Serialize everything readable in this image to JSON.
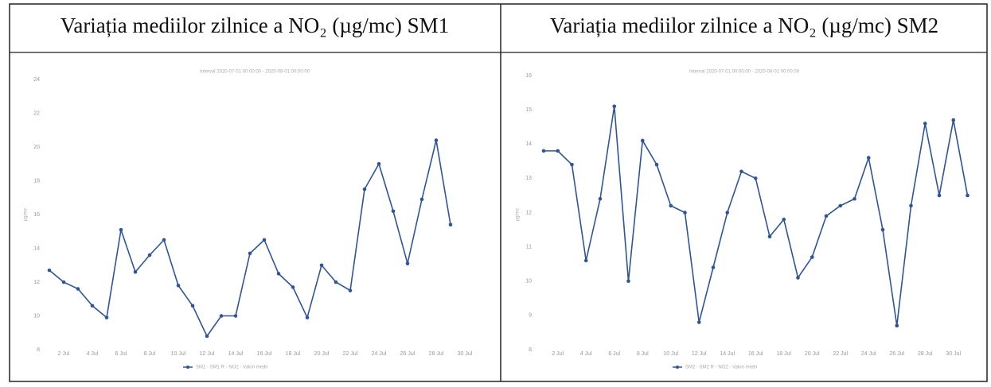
{
  "chart_data": [
    {
      "type": "line",
      "title": "Variația mediilor zilnice a NO₂ (µg/mc) SM1",
      "subtitle": "Interval 2020-07-01 00:00:00 - 2020-08-01 00:00:00",
      "ylabel": "µg/mc",
      "categories": [
        null,
        "2 Jul",
        null,
        "4 Jul",
        null,
        "6 Jul",
        null,
        "8 Jul",
        null,
        "10 Jul",
        null,
        "12 Jul",
        null,
        "14 Jul",
        null,
        "16 Jul",
        null,
        "18 Jul",
        null,
        "20 Jul",
        null,
        "22 Jul",
        null,
        "24 Jul",
        null,
        "26 Jul",
        null,
        "28 Jul",
        null,
        "30 Jul"
      ],
      "series": [
        {
          "name": "SM1 - SM1 R - NO2 - Valori medii",
          "color": "#2f5597",
          "values": [
            12.7,
            12.0,
            11.6,
            10.6,
            9.9,
            15.1,
            12.6,
            13.6,
            14.5,
            11.8,
            10.6,
            8.8,
            10.0,
            10.0,
            13.7,
            14.5,
            12.5,
            11.7,
            9.9,
            13.0,
            12.0,
            11.5,
            17.5,
            19.0,
            16.2,
            13.1,
            16.9,
            20.4,
            15.4,
            null
          ]
        }
      ],
      "ylim": [
        8,
        24
      ],
      "yticks": [
        8,
        10,
        12,
        14,
        16,
        18,
        20,
        22,
        24
      ]
    },
    {
      "type": "line",
      "title": "Variația mediilor zilnice a NO₂ (µg/mc) SM2",
      "subtitle": "Interval 2020-07-01 00:00:00 - 2020-08-01 00:00:00",
      "ylabel": "µg/mc",
      "categories": [
        null,
        "2 Jul",
        null,
        "4 Jul",
        null,
        "6 Jul",
        null,
        "8 Jul",
        null,
        "10 Jul",
        null,
        "12 Jul",
        null,
        "14 Jul",
        null,
        "16 Jul",
        null,
        "18 Jul",
        null,
        "20 Jul",
        null,
        "22 Jul",
        null,
        "24 Jul",
        null,
        "26 Jul",
        null,
        "28 Jul",
        null,
        "30 Jul",
        null
      ],
      "series": [
        {
          "name": "SM2 - SM2 R - NO2 - Valori medii",
          "color": "#2f5597",
          "values": [
            13.8,
            13.8,
            13.4,
            10.6,
            12.4,
            15.1,
            10.0,
            14.1,
            13.4,
            12.2,
            12.0,
            8.8,
            10.4,
            12.0,
            13.2,
            13.0,
            11.3,
            11.8,
            10.1,
            10.7,
            11.9,
            12.2,
            12.4,
            13.6,
            11.5,
            8.7,
            12.2,
            14.6,
            12.5,
            14.7,
            12.5
          ]
        }
      ],
      "ylim": [
        8,
        16
      ],
      "yticks": [
        8,
        9,
        10,
        11,
        12,
        13,
        14,
        15,
        16
      ]
    }
  ]
}
